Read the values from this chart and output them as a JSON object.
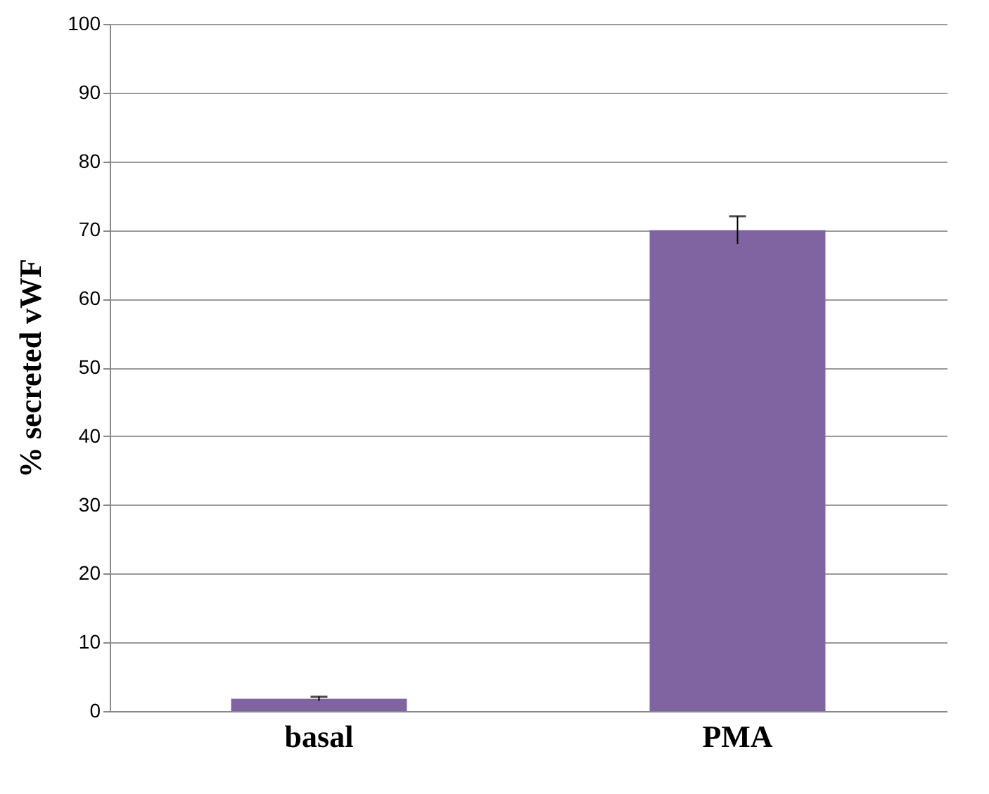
{
  "chart_data": {
    "type": "bar",
    "ylabel": "% secreted vWF",
    "categories": [
      "basal",
      "PMA"
    ],
    "values": [
      1.8,
      70
    ],
    "errors": [
      0.3,
      2
    ],
    "color": "#8064a2",
    "ylim": [
      0,
      100
    ],
    "yticks": [
      0,
      10,
      20,
      30,
      40,
      50,
      60,
      70,
      80,
      90,
      100
    ],
    "grid": "y"
  }
}
